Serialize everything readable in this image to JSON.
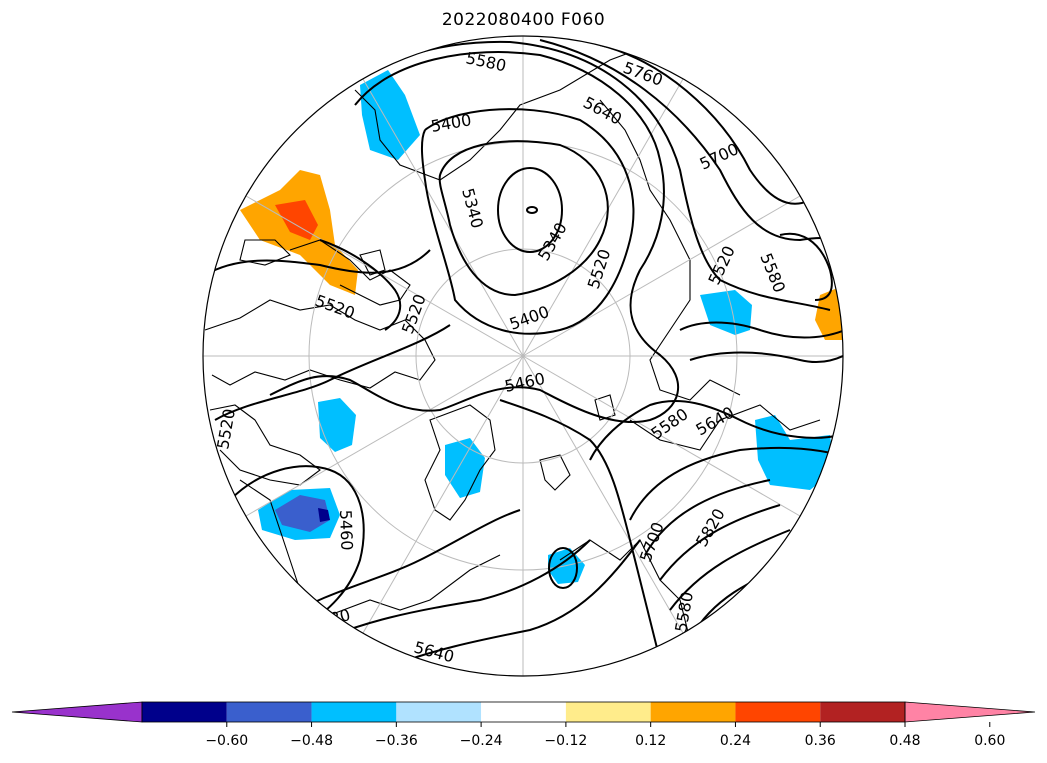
{
  "title": "2022080400 F060",
  "map": {
    "projection": "north-polar-stereographic",
    "contour_labels": [
      "5580",
      "5760",
      "5640",
      "5400",
      "5700",
      "5340",
      "5340",
      "5520",
      "5520",
      "5580",
      "5520",
      "5400",
      "5460",
      "5580",
      "5640",
      "5820",
      "5700",
      "5520",
      "5460",
      "5580",
      "5640",
      "5520",
      "5580"
    ],
    "colors": {
      "land_outline": "#000000",
      "graticule": "#bbbbbb",
      "contour": "#000000"
    }
  },
  "colorbar": {
    "ticks": [
      "−0.60",
      "−0.48",
      "−0.36",
      "−0.24",
      "−0.12",
      "0.12",
      "0.24",
      "0.36",
      "0.48",
      "0.60"
    ],
    "colors": [
      "#9932cc",
      "#00008b",
      "#3a5fcd",
      "#00bfff",
      "#b0e2ff",
      "#ffffff",
      "#ffec8b",
      "#ffa500",
      "#ff4500",
      "#b22222",
      "#ff83a5"
    ]
  }
}
